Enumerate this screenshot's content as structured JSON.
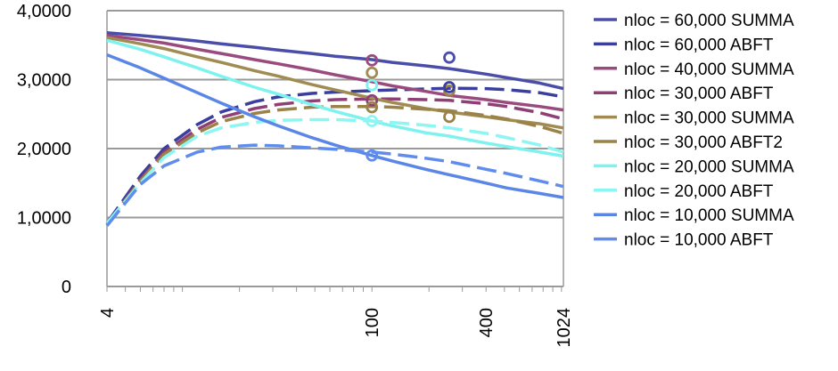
{
  "chart_data": {
    "type": "line",
    "title": "",
    "xlabel": "",
    "ylabel": "",
    "x_scale": "log",
    "x_ticks": [
      "4",
      "100",
      "400",
      "1024"
    ],
    "y_ticks": [
      "0",
      "1,0000",
      "2,0000",
      "3,0000",
      "4,0000"
    ],
    "ylim": [
      0,
      40000
    ],
    "grid": "horizontal",
    "legend_position": "right",
    "x": [
      4,
      6,
      8,
      12,
      16,
      24,
      32,
      48,
      64,
      100,
      128,
      192,
      256,
      400,
      512,
      768,
      1024
    ],
    "series": [
      {
        "name": "nloc = 60,000 SUMMA",
        "color": "#4a4ea8",
        "style": "solid",
        "values": [
          36800,
          36400,
          36100,
          35600,
          35200,
          34700,
          34300,
          33800,
          33400,
          32900,
          32500,
          32000,
          31600,
          30800,
          30300,
          29500,
          28700
        ]
      },
      {
        "name": "nloc = 60,000 ABFT",
        "color": "#3a3f9e",
        "style": "dashed",
        "values": [
          9200,
          16000,
          20000,
          23500,
          25300,
          26800,
          27500,
          28000,
          28200,
          28400,
          28500,
          28650,
          28750,
          28700,
          28550,
          28100,
          27500
        ]
      },
      {
        "name": "nloc = 40,000 SUMMA",
        "color": "#9a4a7e",
        "style": "solid",
        "values": [
          36400,
          35800,
          35300,
          34400,
          33800,
          32900,
          32300,
          31400,
          30700,
          29700,
          29100,
          28300,
          27700,
          27100,
          26700,
          26100,
          25600
        ]
      },
      {
        "name": "nloc = 30,000 ABFT",
        "color": "#8e3f74",
        "style": "dashed",
        "values": [
          9000,
          15500,
          19500,
          22800,
          24500,
          25800,
          26400,
          26900,
          27100,
          27200,
          27200,
          27100,
          27000,
          26500,
          26100,
          25200,
          24300
        ]
      },
      {
        "name": "nloc = 30,000 SUMMA",
        "color": "#a08c52",
        "style": "solid",
        "values": [
          36100,
          35200,
          34500,
          33300,
          32500,
          31300,
          30500,
          29300,
          28500,
          27300,
          26700,
          25800,
          25300,
          24600,
          24200,
          23600,
          23000
        ]
      },
      {
        "name": "nloc = 30,000 ABFT2",
        "color": "#9a8249",
        "style": "dashed",
        "values": [
          9000,
          15300,
          19200,
          22300,
          23900,
          25100,
          25600,
          26000,
          26100,
          26100,
          26000,
          25700,
          25500,
          24800,
          24300,
          23200,
          22200
        ]
      },
      {
        "name": "nloc = 20,000 SUMMA",
        "color": "#7ef2ee",
        "style": "solid",
        "values": [
          35700,
          34400,
          33300,
          31700,
          30500,
          28900,
          27900,
          26400,
          25400,
          24000,
          23300,
          22300,
          21800,
          20800,
          20300,
          19500,
          18900
        ]
      },
      {
        "name": "nloc = 20,000 ABFT",
        "color": "#8df5f2",
        "style": "dashed",
        "values": [
          9200,
          15000,
          18700,
          21800,
          23000,
          23800,
          24100,
          24200,
          24200,
          24000,
          23800,
          23400,
          23000,
          22200,
          21600,
          20500,
          19500
        ]
      },
      {
        "name": "nloc = 10,000 SUMMA",
        "color": "#5a86e8",
        "style": "solid",
        "values": [
          33600,
          31700,
          30200,
          28100,
          26600,
          24600,
          23300,
          21600,
          20500,
          19000,
          18200,
          17000,
          16200,
          15000,
          14300,
          13500,
          12900
        ]
      },
      {
        "name": "nloc = 10,000 ABFT",
        "color": "#5f8ced",
        "style": "dashed",
        "values": [
          8800,
          14800,
          17500,
          19500,
          20200,
          20500,
          20400,
          20100,
          19900,
          19500,
          19200,
          18600,
          18100,
          17000,
          16400,
          15300,
          14500
        ]
      }
    ],
    "markers": [
      {
        "x": 100,
        "y": 32800,
        "color": "#9a4a7e"
      },
      {
        "x": 100,
        "y": 31000,
        "color": "#a08c52"
      },
      {
        "x": 100,
        "y": 29200,
        "color": "#7ef2ee"
      },
      {
        "x": 100,
        "y": 27000,
        "color": "#8e3f74"
      },
      {
        "x": 100,
        "y": 26000,
        "color": "#9a8249"
      },
      {
        "x": 100,
        "y": 24000,
        "color": "#8df5f2"
      },
      {
        "x": 100,
        "y": 19000,
        "color": "#5f8ced"
      },
      {
        "x": 256,
        "y": 33200,
        "color": "#4a4ea8"
      },
      {
        "x": 256,
        "y": 28400,
        "color": "#9a8249"
      },
      {
        "x": 256,
        "y": 28900,
        "color": "#3a3f9e"
      },
      {
        "x": 256,
        "y": 24600,
        "color": "#9a8249"
      }
    ]
  }
}
